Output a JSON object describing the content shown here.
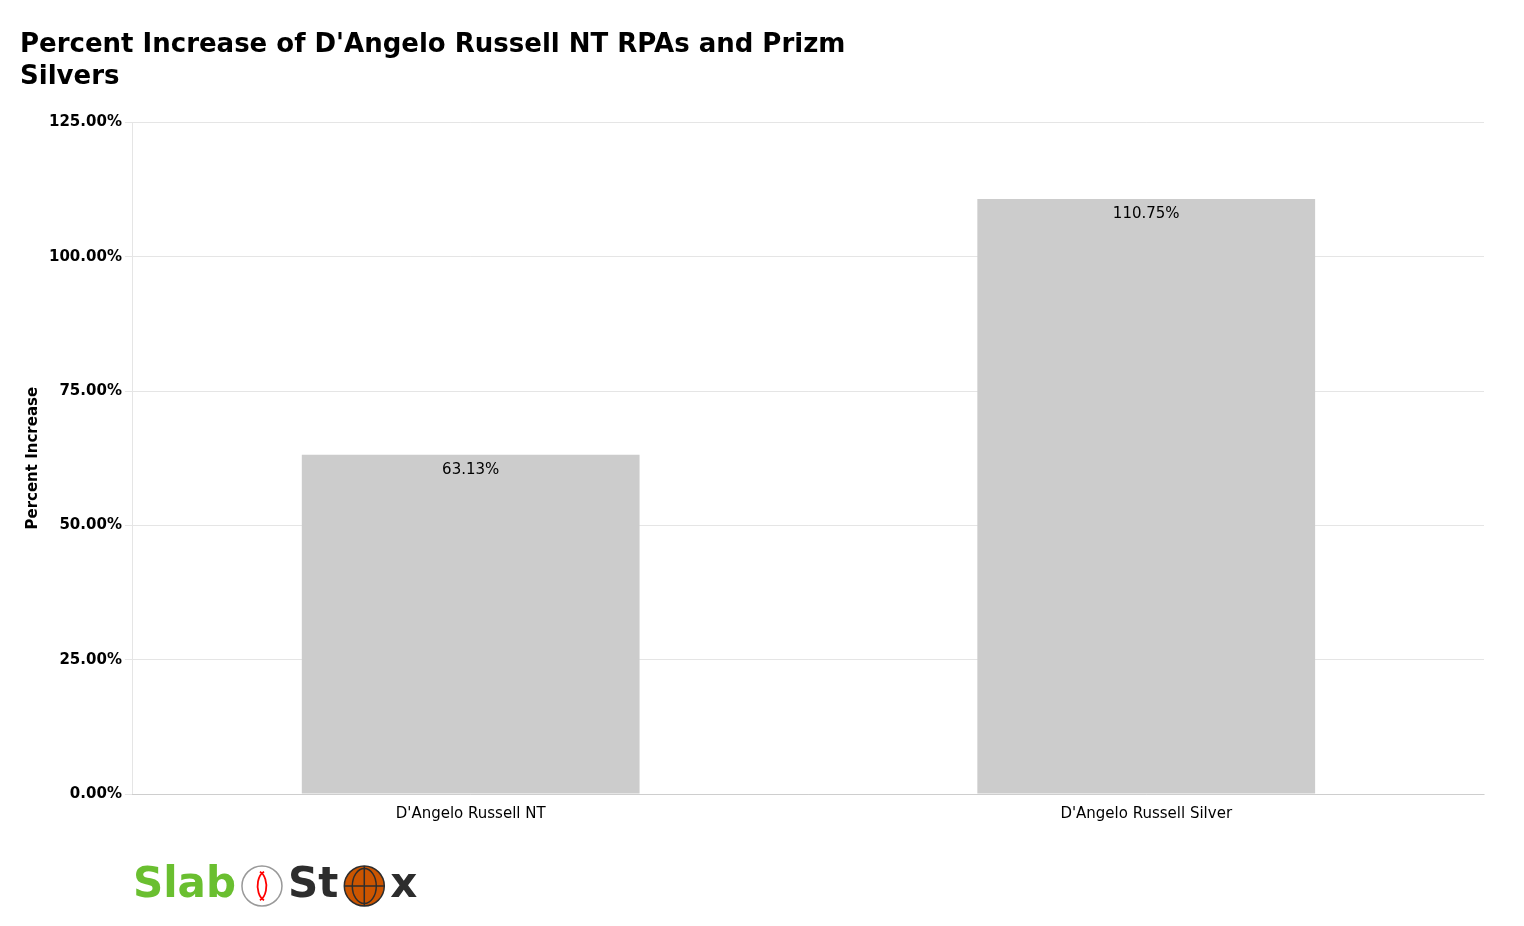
{
  "chart_data": {
    "type": "bar",
    "title": "Percent Increase of D'Angelo Russell NT RPAs and Prizm\nSilvers",
    "ylabel": "Percent Increase",
    "categories": [
      "D'Angelo Russell NT",
      "D'Angelo Russell Silver"
    ],
    "values": [
      63.13,
      110.75
    ],
    "value_labels": [
      "63.13%",
      "110.75%"
    ],
    "data_labels": true,
    "color": "#cccccc",
    "ylim": [
      0,
      125
    ],
    "yticks": [
      {
        "value": 0,
        "label": "0.00%"
      },
      {
        "value": 25,
        "label": "25.00%"
      },
      {
        "value": 50,
        "label": "50.00%"
      },
      {
        "value": 75,
        "label": "75.00%"
      },
      {
        "value": 100,
        "label": "100.00%"
      },
      {
        "value": 125,
        "label": "125.00%"
      }
    ],
    "grid": true,
    "annotations": [
      {
        "text": "Slab",
        "color": "#6abf30"
      },
      {
        "text": "St",
        "color": "#2d2d2d"
      },
      {
        "text": "x",
        "color": "#2d2d2d"
      }
    ]
  }
}
